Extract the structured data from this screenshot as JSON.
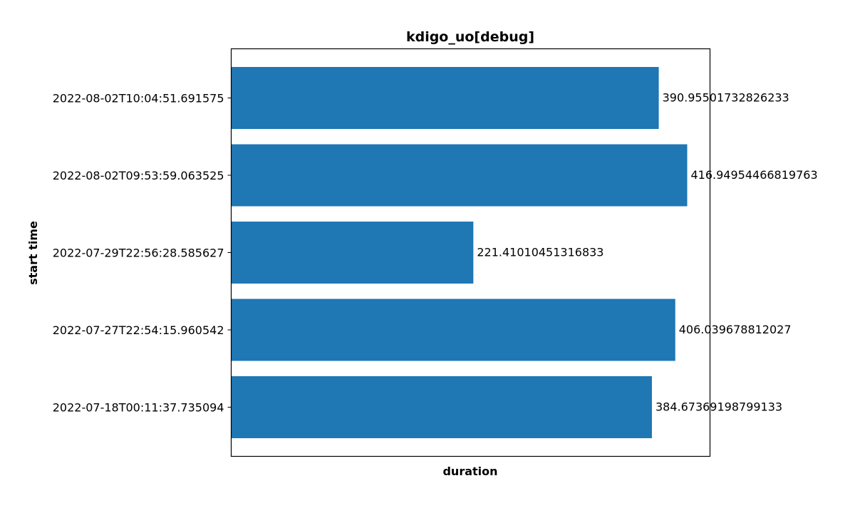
{
  "chart_data": {
    "type": "bar",
    "orientation": "horizontal",
    "title": "kdigo_uo[debug]",
    "xlabel": "duration",
    "ylabel": "start time",
    "categories": [
      "2022-08-02T10:04:51.691575",
      "2022-08-02T09:53:59.063525",
      "2022-07-29T22:56:28.585627",
      "2022-07-27T22:54:15.960542",
      "2022-07-18T00:11:37.735094"
    ],
    "values": [
      390.95501732826233,
      416.94954466819763,
      221.41010451316833,
      406.039678812027,
      384.67369198799133
    ],
    "data_labels": [
      "390.95501732826233",
      "416.94954466819763",
      "221.41010451316833",
      "406.039678812027",
      "384.67369198799133"
    ],
    "xlim": [
      0,
      437.8
    ],
    "bar_color": "#1f77b4",
    "grid": false,
    "x_ticks_visible": false,
    "legend": "none"
  }
}
